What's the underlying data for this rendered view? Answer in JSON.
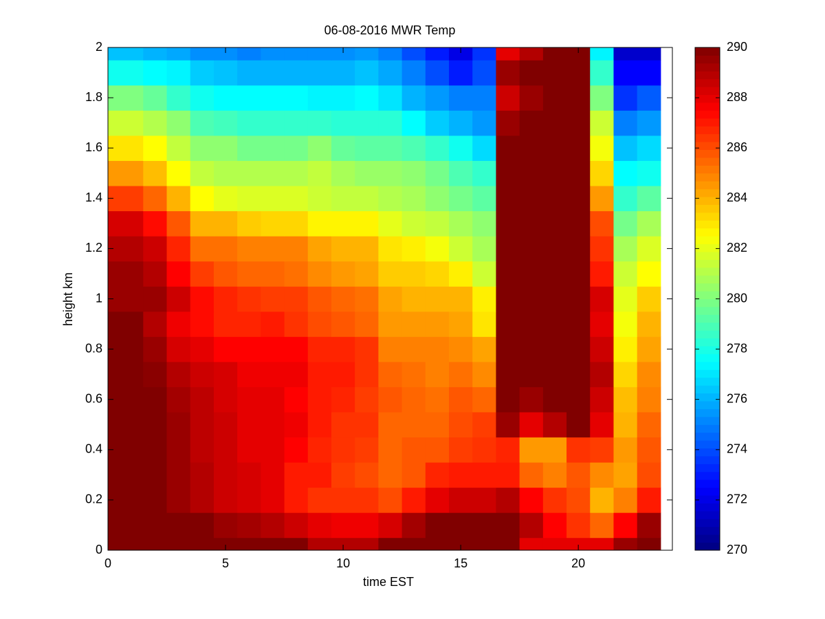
{
  "chart_data": {
    "type": "heatmap",
    "title": "06-08-2016 MWR Temp",
    "x_label": "time EST",
    "y_label": "height km",
    "x": [
      0,
      1.5,
      2.5,
      3.5,
      4.5,
      5.5,
      6.5,
      7.5,
      8.5,
      9.5,
      10.5,
      11.5,
      12.5,
      13.5,
      14.5,
      15.5,
      16.5,
      17.5,
      18.5,
      19.5,
      20.5,
      21.5,
      22.5,
      23.5
    ],
    "y": [
      0,
      0.05,
      0.15,
      0.25,
      0.35,
      0.45,
      0.55,
      0.65,
      0.75,
      0.85,
      0.95,
      1.05,
      1.15,
      1.25,
      1.35,
      1.45,
      1.55,
      1.65,
      1.75,
      1.85,
      1.95,
      2
    ],
    "values": [
      [
        290,
        290,
        290,
        290,
        290,
        290,
        290,
        290,
        289,
        289,
        289,
        290,
        290,
        290,
        290,
        290,
        290,
        288,
        288,
        288,
        288,
        289.5,
        290
      ],
      [
        290,
        290,
        290,
        290,
        289.5,
        289.3,
        289,
        288.5,
        288,
        287.8,
        287.8,
        288.3,
        289.3,
        290,
        290,
        290,
        290,
        289,
        287.5,
        286.5,
        285.5,
        287.5,
        289.5
      ],
      [
        290,
        290,
        289.5,
        289,
        288.5,
        288.3,
        288,
        287,
        286.5,
        286.5,
        286.5,
        286,
        287,
        288,
        288.5,
        288.5,
        289,
        287.5,
        286.5,
        286,
        284,
        285,
        287
      ],
      [
        290,
        290,
        289.5,
        289,
        288.5,
        288.3,
        288,
        287,
        287,
        286.3,
        286,
        285.5,
        285.8,
        286.8,
        287,
        287,
        287,
        285.5,
        285,
        285.8,
        284.8,
        284.3,
        286
      ],
      [
        290,
        290,
        289.5,
        288.8,
        288.5,
        288,
        288,
        287.5,
        286.8,
        286.5,
        286.3,
        285.5,
        285.8,
        285.8,
        286.3,
        286.5,
        286.8,
        284.5,
        284.5,
        286.5,
        286.3,
        284.5,
        285.8
      ],
      [
        290,
        290,
        289.5,
        288.8,
        288.5,
        288,
        288,
        287.8,
        287,
        286.5,
        286.5,
        285.5,
        285.5,
        285.5,
        286,
        286.3,
        289.5,
        288,
        289,
        290,
        288,
        284,
        285.5
      ],
      [
        290,
        290,
        289.3,
        288.8,
        288.3,
        288,
        288,
        287.5,
        287,
        286.8,
        286.3,
        285.8,
        285.5,
        285.3,
        285.8,
        285.5,
        290,
        289.5,
        290,
        290,
        288.5,
        283.8,
        285
      ],
      [
        290,
        289.8,
        289,
        288.5,
        288.3,
        287.8,
        287.8,
        287.8,
        287,
        287,
        286.5,
        285.5,
        285.3,
        285,
        285.3,
        284.8,
        290,
        290,
        290,
        290,
        289,
        283.3,
        284.8
      ],
      [
        290,
        289.5,
        288.3,
        288,
        287.5,
        287.5,
        287.5,
        287.5,
        286.8,
        286.8,
        286.5,
        285,
        285,
        285,
        284.8,
        284.3,
        290,
        290,
        290,
        290,
        288.5,
        282.8,
        284.3
      ],
      [
        290,
        289,
        287.8,
        287.3,
        286.8,
        286.8,
        287,
        286.5,
        286,
        285.8,
        285.5,
        284.5,
        284.5,
        284.5,
        284.3,
        283,
        290,
        290,
        290,
        290,
        288,
        282.3,
        284
      ],
      [
        289.5,
        289.5,
        288.5,
        287.3,
        286.8,
        286.5,
        286.3,
        286.3,
        285.8,
        285.5,
        285.3,
        284.3,
        284,
        284,
        284,
        282.8,
        290,
        290,
        290,
        290,
        288.3,
        282,
        283.5
      ],
      [
        289.5,
        289,
        287.5,
        286.3,
        285.8,
        285.5,
        285.5,
        285.3,
        284.8,
        284.5,
        284.3,
        283.5,
        283.5,
        283.3,
        282.8,
        281.5,
        290,
        290,
        290,
        290,
        287,
        281.5,
        282.5
      ],
      [
        289,
        288.5,
        286.8,
        285.3,
        285.3,
        285,
        285,
        285,
        284.3,
        284,
        284,
        283,
        282.8,
        282.3,
        281.5,
        280.8,
        290,
        290,
        290,
        290,
        286.5,
        280.8,
        281.8
      ],
      [
        288.3,
        287.3,
        285.8,
        284,
        284,
        283.5,
        283.3,
        283.3,
        282.7,
        282.7,
        282.7,
        282,
        281.5,
        281.3,
        280.8,
        280.3,
        290,
        290,
        290,
        290,
        286,
        279.8,
        280.8
      ],
      [
        286.3,
        285.5,
        284,
        282.5,
        282,
        281.8,
        281.8,
        281.8,
        281.5,
        281.3,
        281.3,
        281,
        280.8,
        280.3,
        279.8,
        279.3,
        290,
        290,
        290,
        290,
        284.5,
        278.5,
        279.3
      ],
      [
        284.5,
        283.8,
        282.5,
        281.3,
        281,
        281,
        281,
        281,
        281.3,
        280.8,
        280.5,
        280.5,
        280.3,
        279.8,
        279,
        278.5,
        290,
        290,
        290,
        290,
        283.3,
        277.5,
        277.8
      ],
      [
        283,
        282.5,
        281.3,
        280.3,
        280.3,
        279.8,
        279.8,
        279.8,
        280.3,
        279.5,
        279.3,
        279.3,
        279,
        278.5,
        277.8,
        276.8,
        290,
        290,
        290,
        290,
        282.3,
        276.3,
        276.8
      ],
      [
        281.5,
        281,
        280.3,
        279,
        278.8,
        278.5,
        278.5,
        278.5,
        278.5,
        278.3,
        278.3,
        278.3,
        277.5,
        276.5,
        276,
        275.5,
        289.5,
        290,
        290,
        290,
        281.5,
        275,
        275.5
      ],
      [
        280,
        279.5,
        278.5,
        277.8,
        277.5,
        277.5,
        277.5,
        277.5,
        277.3,
        277.3,
        277.5,
        277,
        276,
        275.5,
        275,
        275,
        288.5,
        289.5,
        290,
        290,
        280,
        273.5,
        274.3
      ],
      [
        277.8,
        277.5,
        277.3,
        276.5,
        276.3,
        276,
        276,
        276,
        276,
        276,
        276.3,
        275.8,
        275,
        274,
        273,
        274,
        289.5,
        290,
        290,
        290,
        278.5,
        272.5,
        272.5
      ],
      [
        276.3,
        276,
        275.8,
        275.3,
        275.3,
        275,
        275.3,
        275.3,
        275.3,
        275.3,
        275.5,
        275,
        274,
        273,
        272,
        273.5,
        288,
        289,
        290,
        290,
        277.3,
        271.5,
        271.5
      ]
    ],
    "colormap": "jet",
    "clim": [
      270,
      290
    ],
    "cticks": [
      270,
      272,
      274,
      276,
      278,
      280,
      282,
      284,
      286,
      288,
      290
    ],
    "xlim": [
      0,
      24
    ],
    "xticks": [
      0,
      5,
      10,
      15,
      20
    ],
    "ylim": [
      0,
      2
    ],
    "yticks": [
      0,
      0.2,
      0.4,
      0.6,
      0.8,
      1,
      1.2,
      1.4,
      1.6,
      1.8,
      2
    ]
  }
}
